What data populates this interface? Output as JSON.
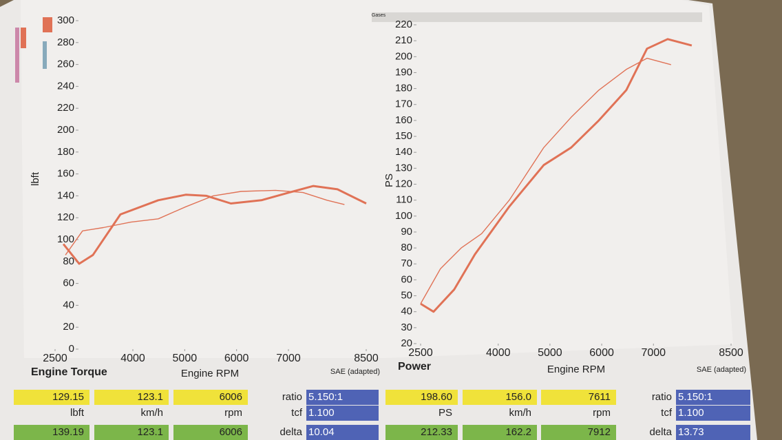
{
  "header": "Gases",
  "chart_data": [
    {
      "type": "line",
      "title": "Engine Torque",
      "x_label": "Engine RPM",
      "y_label": "lbft",
      "note": "SAE (adapted)",
      "xlim": [
        2500,
        8500
      ],
      "xticks": [
        2500,
        4000,
        5000,
        6000,
        7000,
        8500
      ],
      "ylim": [
        0,
        300
      ],
      "yticks": [
        0,
        20,
        40,
        60,
        80,
        100,
        120,
        140,
        160,
        180,
        200,
        220,
        240,
        260,
        280,
        300
      ],
      "series": [
        {
          "color": "#e07256",
          "x": [
            2660,
            2965,
            3230,
            3760,
            4490,
            5020,
            5420,
            5890,
            6480,
            7015,
            7480,
            7945,
            8500
          ],
          "values": [
            96,
            78,
            86,
            123,
            136,
            141,
            140,
            133,
            136,
            143,
            149,
            146,
            133
          ]
        },
        {
          "color": "#e07256",
          "x": [
            2700,
            3030,
            3430,
            3960,
            4490,
            5020,
            5550,
            6085,
            6750,
            7280,
            7745,
            8080
          ],
          "values": [
            86,
            108,
            111,
            116,
            119,
            130,
            140,
            144,
            145,
            143,
            136,
            132
          ]
        }
      ]
    },
    {
      "type": "line",
      "title": "Power",
      "x_label": "Engine RPM",
      "y_label": "PS",
      "note": "SAE (adapted)",
      "xlim": [
        2500,
        8500
      ],
      "xticks": [
        2500,
        4000,
        5000,
        6000,
        7000,
        8500
      ],
      "ylim": [
        20,
        220
      ],
      "yticks": [
        20,
        30,
        40,
        50,
        60,
        70,
        80,
        90,
        100,
        110,
        120,
        130,
        140,
        150,
        160,
        170,
        180,
        190,
        200,
        210,
        220
      ],
      "series": [
        {
          "color": "#e07256",
          "x": [
            2500,
            2750,
            3150,
            3550,
            4215,
            4880,
            5410,
            5945,
            6475,
            6875,
            7275,
            7740
          ],
          "values": [
            45,
            40,
            54,
            76,
            106,
            132,
            143,
            160,
            179,
            205,
            211,
            207
          ]
        },
        {
          "color": "#e07256",
          "x": [
            2500,
            2885,
            3285,
            3680,
            4215,
            4880,
            5410,
            5945,
            6475,
            6875,
            7340
          ],
          "values": [
            45,
            67,
            80,
            89,
            110,
            143,
            162,
            179,
            192,
            199,
            195
          ]
        }
      ]
    }
  ],
  "readouts": [
    {
      "current": [
        "129.15",
        "123.1",
        "6006"
      ],
      "units": [
        "lbft",
        "km/h",
        "rpm"
      ],
      "peak": [
        "139.19",
        "123.1",
        "6006"
      ],
      "params": [
        {
          "label": "ratio",
          "value": "5.150:1"
        },
        {
          "label": "tcf",
          "value": "1.100"
        },
        {
          "label": "delta",
          "value": "10.04"
        }
      ]
    },
    {
      "current": [
        "198.60",
        "156.0",
        "7611"
      ],
      "units": [
        "PS",
        "km/h",
        "rpm"
      ],
      "peak": [
        "212.33",
        "162.2",
        "7912"
      ],
      "params": [
        {
          "label": "ratio",
          "value": "5.150:1"
        },
        {
          "label": "tcf",
          "value": "1.100"
        },
        {
          "label": "delta",
          "value": "13.73"
        }
      ]
    }
  ]
}
